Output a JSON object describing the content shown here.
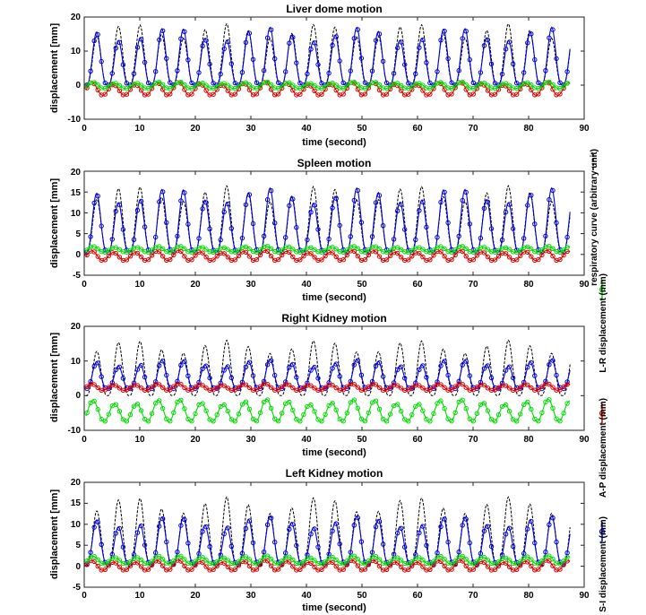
{
  "colors": {
    "respiratory": "#000000",
    "lr": "#00dd00",
    "ap": "#dd0000",
    "si": "#0000dd"
  },
  "legend": {
    "respiratory": "respiratory curve (arbitrary unit)",
    "lr": "L-R displacement (mm)",
    "ap": "A-P displacement (mm)",
    "si": "S-I displacement (mm)"
  },
  "chart_data": [
    {
      "type": "line",
      "title": "Liver dome motion",
      "xlabel": "time (second)",
      "ylabel": "displacement [mm]",
      "xlim": [
        0,
        90
      ],
      "ylim": [
        -10,
        20
      ],
      "xticks": [
        "0",
        "10",
        "20",
        "30",
        "40",
        "50",
        "60",
        "70",
        "80",
        "90"
      ],
      "yticks": [
        "-10",
        "0",
        "10",
        "20"
      ],
      "period_s": 3.9,
      "series": [
        {
          "name": "respiratory curve (arbitrary unit)",
          "key": "respiratory",
          "baseline": 0,
          "peak": 18
        },
        {
          "name": "S-I displacement (mm)",
          "key": "si",
          "baseline": 0,
          "peak": 17
        },
        {
          "name": "A-P displacement (mm)",
          "key": "ap",
          "baseline": -3,
          "peak": 1
        },
        {
          "name": "L-R displacement (mm)",
          "key": "lr",
          "baseline": -1,
          "peak": 1
        }
      ]
    },
    {
      "type": "line",
      "title": "Spleen motion",
      "xlabel": "time (second)",
      "ylabel": "displacement [mm]",
      "xlim": [
        0,
        90
      ],
      "ylim": [
        -5,
        20
      ],
      "xticks": [
        "0",
        "10",
        "20",
        "30",
        "40",
        "50",
        "60",
        "70",
        "80",
        "90"
      ],
      "yticks": [
        "-5",
        "0",
        "5",
        "10",
        "15",
        "20"
      ],
      "period_s": 3.9,
      "series": [
        {
          "name": "respiratory curve (arbitrary unit)",
          "key": "respiratory",
          "baseline": 0.5,
          "peak": 16.5
        },
        {
          "name": "S-I displacement (mm)",
          "key": "si",
          "baseline": 0.5,
          "peak": 16
        },
        {
          "name": "A-P displacement (mm)",
          "key": "ap",
          "baseline": -1.5,
          "peak": 1
        },
        {
          "name": "L-R displacement (mm)",
          "key": "lr",
          "baseline": 0.5,
          "peak": 2
        }
      ]
    },
    {
      "type": "line",
      "title": "Right Kidney motion",
      "xlabel": "time (second)",
      "ylabel": "displacement [mm]",
      "xlim": [
        0,
        90
      ],
      "ylim": [
        -10,
        20
      ],
      "xticks": [
        "0",
        "10",
        "20",
        "30",
        "40",
        "50",
        "60",
        "70",
        "80",
        "90"
      ],
      "yticks": [
        "-10",
        "0",
        "10",
        "20"
      ],
      "period_s": 3.9,
      "series": [
        {
          "name": "respiratory curve (arbitrary unit)",
          "key": "respiratory",
          "baseline": 0,
          "peak": 16
        },
        {
          "name": "S-I displacement (mm)",
          "key": "si",
          "baseline": 2,
          "peak": 10.5
        },
        {
          "name": "A-P displacement (mm)",
          "key": "ap",
          "baseline": 1.5,
          "peak": 3.5
        },
        {
          "name": "L-R displacement (mm)",
          "key": "lr",
          "baseline": -7.5,
          "peak": -1
        }
      ]
    },
    {
      "type": "line",
      "title": "Left Kidney motion",
      "xlabel": "time (second)",
      "ylabel": "displacement [mm]",
      "xlim": [
        0,
        90
      ],
      "ylim": [
        -5,
        20
      ],
      "xticks": [
        "0",
        "10",
        "20",
        "30",
        "40",
        "50",
        "60",
        "70",
        "80",
        "90"
      ],
      "yticks": [
        "-5",
        "0",
        "5",
        "10",
        "15",
        "20"
      ],
      "period_s": 3.9,
      "series": [
        {
          "name": "respiratory curve (arbitrary unit)",
          "key": "respiratory",
          "baseline": 0,
          "peak": 16.5
        },
        {
          "name": "S-I displacement (mm)",
          "key": "si",
          "baseline": 0.5,
          "peak": 12
        },
        {
          "name": "A-P displacement (mm)",
          "key": "ap",
          "baseline": -1,
          "peak": 1.5
        },
        {
          "name": "L-R displacement (mm)",
          "key": "lr",
          "baseline": 0.5,
          "peak": 2.5
        }
      ]
    }
  ]
}
